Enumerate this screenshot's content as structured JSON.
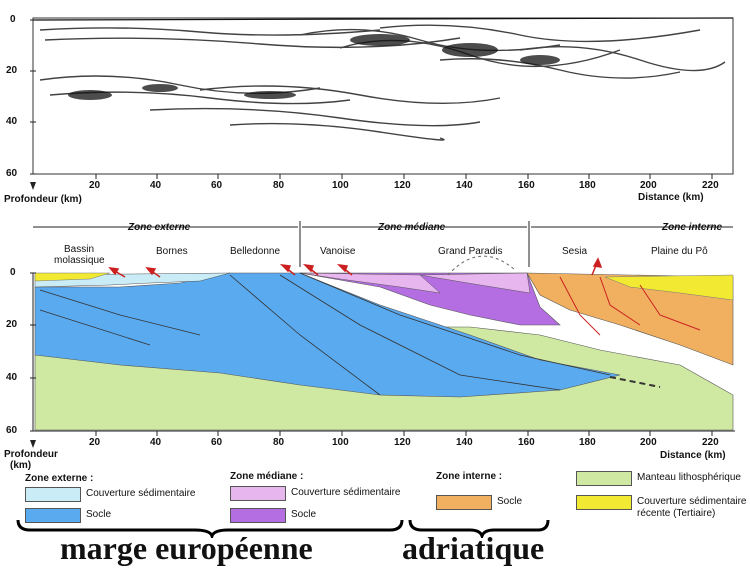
{
  "top_profile": {
    "depth_ticks": [
      "0",
      "20",
      "40",
      "60"
    ],
    "distance_ticks": [
      "20",
      "40",
      "60",
      "80",
      "100",
      "120",
      "140",
      "160",
      "180",
      "200",
      "220"
    ],
    "depth_label": "Profondeur (km)",
    "distance_label": "Distance (km)"
  },
  "section": {
    "zones": {
      "externe": "Zone externe",
      "mediane": "Zone médiane",
      "interne": "Zone interne"
    },
    "places": {
      "bassin_1": "Bassin",
      "bassin_2": "molassique",
      "bornes": "Bornes",
      "belledonne": "Belledonne",
      "vanoise": "Vanoise",
      "grand_paradis": "Grand Paradis",
      "sesia": "Sesia",
      "plaine_po": "Plaine du Pô"
    },
    "depth_ticks": [
      "0",
      "20",
      "40",
      "60"
    ],
    "distance_ticks": [
      "20",
      "40",
      "60",
      "80",
      "100",
      "120",
      "140",
      "160",
      "180",
      "200",
      "220"
    ],
    "depth_label": "Profondeur",
    "depth_unit": "(km)",
    "distance_label": "Distance (km)"
  },
  "legend": {
    "externe_title": "Zone externe :",
    "externe_cover": "Couverture sédimentaire",
    "externe_socle": "Socle",
    "mediane_title": "Zone médiane :",
    "mediane_cover": "Couverture sédimentaire",
    "mediane_socle": "Socle",
    "interne_title": "Zone interne :",
    "interne_socle": "Socle",
    "manteau": "Manteau lithosphérique",
    "recent_1": "Couverture sédimentaire",
    "recent_2": "récente (Tertiaire)"
  },
  "annotations": {
    "europe": "marge européenne",
    "adriatique": "adriatique"
  },
  "colors": {
    "externe_cover": "#c9ecf6",
    "externe_socle": "#5aaaf0",
    "mediane_cover": "#e8b6ee",
    "mediane_socle": "#b46ee2",
    "interne_socle": "#f0b060",
    "manteau": "#cfe8a2",
    "recent": "#f2ea32",
    "fault": "#cc2020"
  }
}
